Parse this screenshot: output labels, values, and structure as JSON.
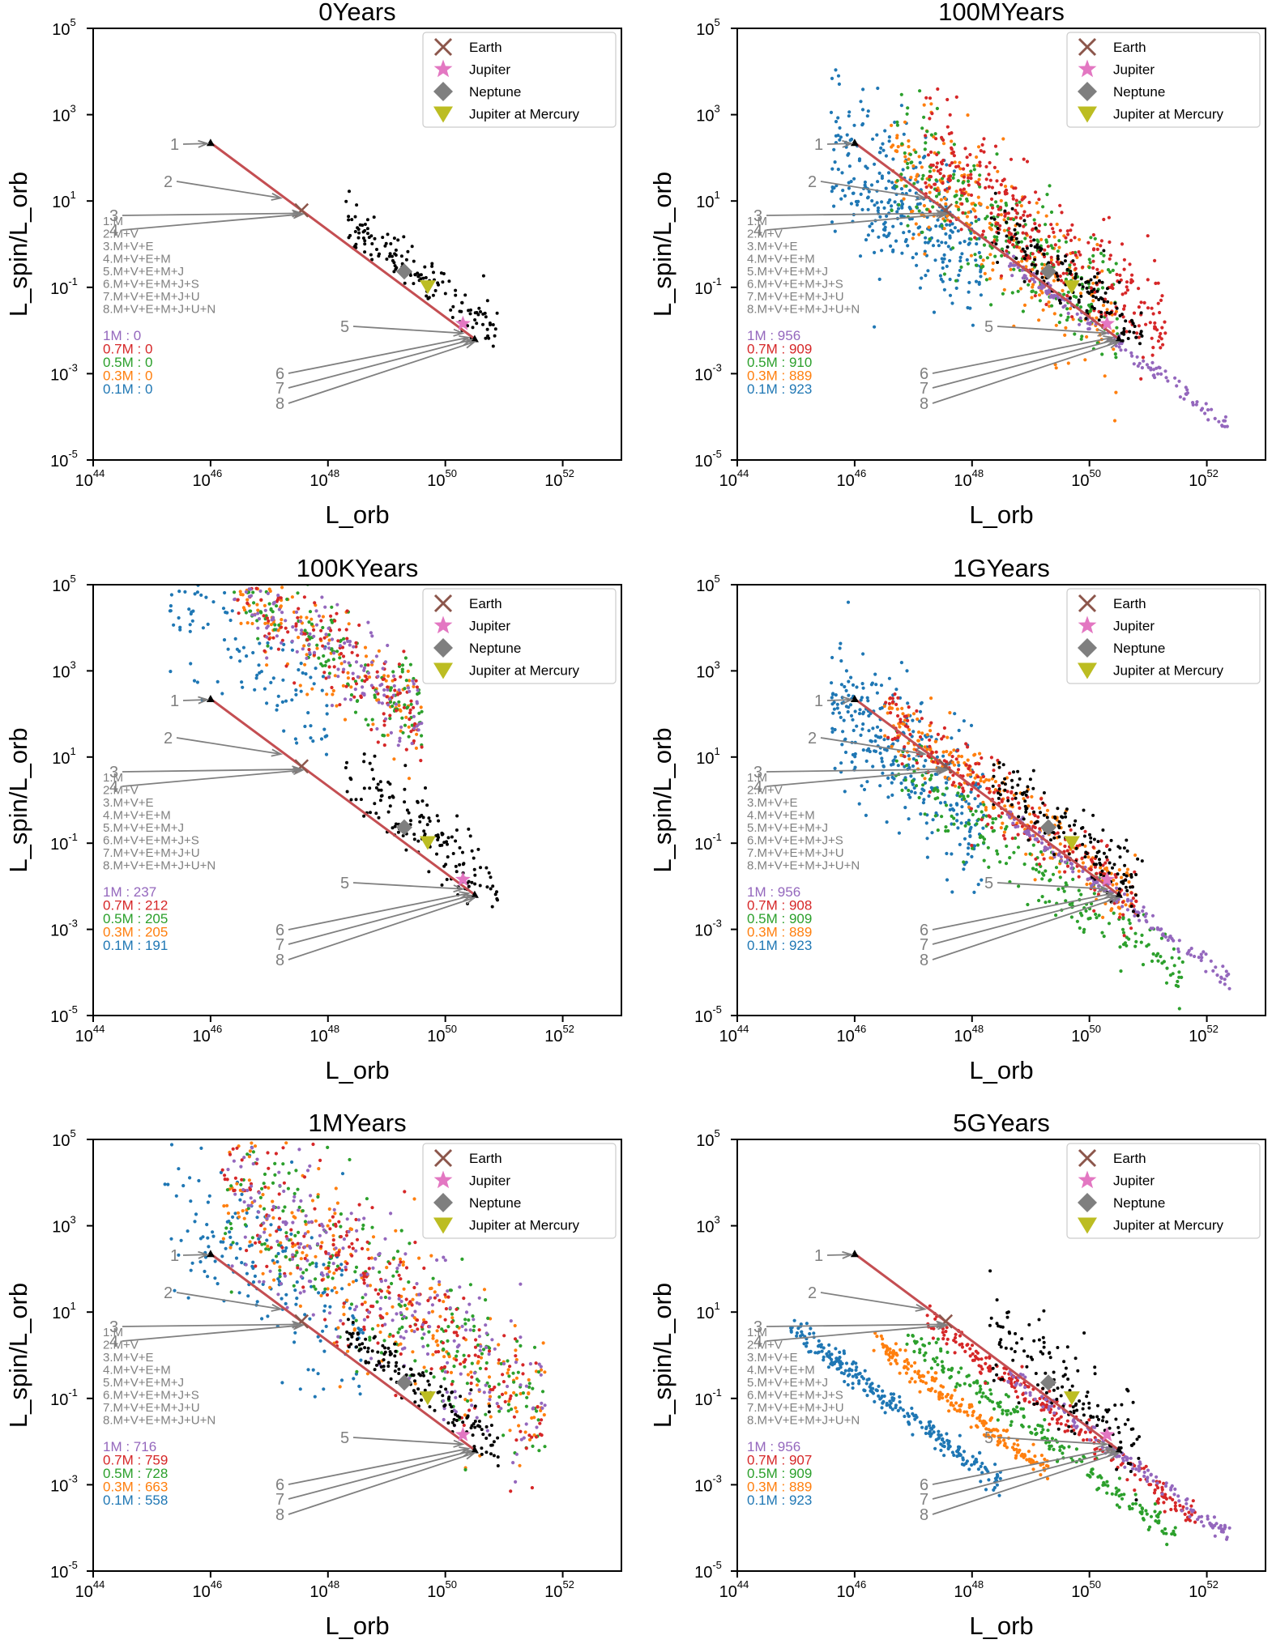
{
  "colors": {
    "earth": "#8c564b",
    "jupiter": "#e377c2",
    "neptune": "#7f7f7f",
    "jupiter_at_mercury": "#bcbd22",
    "m_1": "#9467bd",
    "m_07": "#d62728",
    "m_05": "#2ca02c",
    "m_03": "#ff7f0e",
    "m_01": "#1f77b4",
    "solar_system": "#000000",
    "track": "#c44e52",
    "annotation": "#808080"
  },
  "shared": {
    "xlabel": "L_orb",
    "ylabel": "L_spin/L_orb",
    "x_ticks": [
      "44",
      "46",
      "48",
      "50",
      "52"
    ],
    "y_ticks": [
      "5",
      "3",
      "1",
      "-1",
      "-3",
      "-5"
    ],
    "tick_base": "10",
    "legend": [
      {
        "label": "Earth",
        "marker": "x",
        "color_key": "earth"
      },
      {
        "label": "Jupiter",
        "marker": "star",
        "color_key": "jupiter"
      },
      {
        "label": "Neptune",
        "marker": "diamond",
        "color_key": "neptune"
      },
      {
        "label": "Jupiter at Mercury",
        "marker": "triangle-down",
        "color_key": "jupiter_at_mercury"
      }
    ],
    "combinations": [
      "1.M",
      "2.M+V",
      "3.M+V+E",
      "4.M+V+E+M",
      "5.M+V+E+M+J",
      "6.M+V+E+M+J+S",
      "7.M+V+E+M+J+U",
      "8.M+V+E+M+J+U+N"
    ],
    "annotation_numbers": [
      "1",
      "2",
      "3",
      "4",
      "5",
      "6",
      "7",
      "8"
    ],
    "mass_labels": [
      "1M",
      "0.7M",
      "0.5M",
      "0.3M",
      "0.1M"
    ],
    "count_separator": " : "
  },
  "chart_data": [
    {
      "type": "scatter",
      "title": "0Years",
      "xlabel": "L_orb",
      "ylabel": "L_spin/L_orb",
      "x_scale": "log",
      "y_scale": "log",
      "xlim": [
        1e+44,
        1e+53
      ],
      "ylim": [
        1e-05,
        100000.0
      ],
      "series": [
        {
          "name": "1M",
          "count": "0",
          "dist": "none"
        },
        {
          "name": "0.7M",
          "count": "0",
          "dist": "none"
        },
        {
          "name": "0.5M",
          "count": "0",
          "dist": "none"
        },
        {
          "name": "0.3M",
          "count": "0",
          "dist": "none"
        },
        {
          "name": "0.1M",
          "count": "0",
          "dist": "none"
        }
      ]
    },
    {
      "type": "scatter",
      "title": "100MYears",
      "xlabel": "L_orb",
      "ylabel": "L_spin/L_orb",
      "x_scale": "log",
      "y_scale": "log",
      "xlim": [
        1e+44,
        1e+53
      ],
      "ylim": [
        1e-05,
        100000.0
      ],
      "series": [
        {
          "name": "1M",
          "count": "956",
          "dist": "tight_diag"
        },
        {
          "name": "0.7M",
          "count": "909",
          "dist": "cloud_high"
        },
        {
          "name": "0.5M",
          "count": "910",
          "dist": "cloud_mid"
        },
        {
          "name": "0.3M",
          "count": "889",
          "dist": "cloud_mid"
        },
        {
          "name": "0.1M",
          "count": "923",
          "dist": "cloud_low"
        }
      ]
    },
    {
      "type": "scatter",
      "title": "100KYears",
      "xlabel": "L_orb",
      "ylabel": "L_spin/L_orb",
      "x_scale": "log",
      "y_scale": "log",
      "xlim": [
        1e+44,
        1e+53
      ],
      "ylim": [
        1e-05,
        100000.0
      ],
      "series": [
        {
          "name": "1M",
          "count": "237",
          "dist": "young"
        },
        {
          "name": "0.7M",
          "count": "212",
          "dist": "young"
        },
        {
          "name": "0.5M",
          "count": "205",
          "dist": "young"
        },
        {
          "name": "0.3M",
          "count": "205",
          "dist": "young"
        },
        {
          "name": "0.1M",
          "count": "191",
          "dist": "young_low"
        }
      ]
    },
    {
      "type": "scatter",
      "title": "1GYears",
      "xlabel": "L_orb",
      "ylabel": "L_spin/L_orb",
      "x_scale": "log",
      "y_scale": "log",
      "xlim": [
        1e+44,
        1e+53
      ],
      "ylim": [
        1e-05,
        100000.0
      ],
      "series": [
        {
          "name": "1M",
          "count": "956",
          "dist": "tight_diag"
        },
        {
          "name": "0.7M",
          "count": "908",
          "dist": "near_diag"
        },
        {
          "name": "0.5M",
          "count": "909",
          "dist": "below_diag"
        },
        {
          "name": "0.3M",
          "count": "889",
          "dist": "near_diag"
        },
        {
          "name": "0.1M",
          "count": "923",
          "dist": "cloud_low"
        }
      ]
    },
    {
      "type": "scatter",
      "title": "1MYears",
      "xlabel": "L_orb",
      "ylabel": "L_spin/L_orb",
      "x_scale": "log",
      "y_scale": "log",
      "xlim": [
        1e+44,
        1e+53
      ],
      "ylim": [
        1e-05,
        100000.0
      ],
      "series": [
        {
          "name": "1M",
          "count": "716",
          "dist": "broad"
        },
        {
          "name": "0.7M",
          "count": "759",
          "dist": "broad"
        },
        {
          "name": "0.5M",
          "count": "728",
          "dist": "broad"
        },
        {
          "name": "0.3M",
          "count": "663",
          "dist": "broad"
        },
        {
          "name": "0.1M",
          "count": "558",
          "dist": "broad_low"
        }
      ]
    },
    {
      "type": "scatter",
      "title": "5GYears",
      "xlabel": "L_orb",
      "ylabel": "L_spin/L_orb",
      "x_scale": "log",
      "y_scale": "log",
      "xlim": [
        1e+44,
        1e+53
      ],
      "ylim": [
        1e-05,
        100000.0
      ],
      "series": [
        {
          "name": "1M",
          "count": "956",
          "dist": "tight_diag"
        },
        {
          "name": "0.7M",
          "count": "907",
          "dist": "band_07"
        },
        {
          "name": "0.5M",
          "count": "909",
          "dist": "band_05"
        },
        {
          "name": "0.3M",
          "count": "889",
          "dist": "band_03"
        },
        {
          "name": "0.1M",
          "count": "923",
          "dist": "band_01"
        }
      ]
    }
  ]
}
